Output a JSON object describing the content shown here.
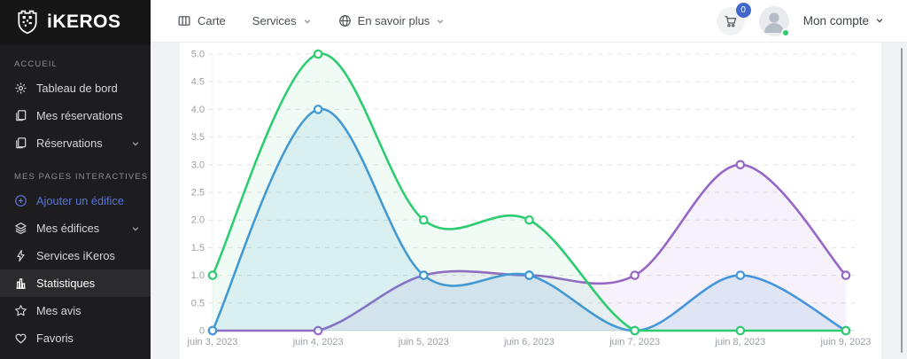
{
  "brand": {
    "name": "iKEROS",
    "logo_icon": "qr-shield"
  },
  "navbar": {
    "items": [
      {
        "label": "Carte",
        "icon": "map",
        "chevron": false
      },
      {
        "label": "Services",
        "icon": null,
        "chevron": true
      },
      {
        "label": "En savoir plus",
        "icon": "globe",
        "chevron": true
      }
    ],
    "cart": {
      "icon": "cart",
      "badge": "0"
    },
    "account": {
      "label": "Mon compte",
      "icon": "user-avatar",
      "status": "online"
    }
  },
  "sidebar": {
    "sections": [
      {
        "label": "ACCUEIL",
        "items": [
          {
            "label": "Tableau de bord",
            "icon": "gear"
          },
          {
            "label": "Mes réservations",
            "icon": "document"
          },
          {
            "label": "Réservations",
            "icon": "document",
            "chevron": true
          }
        ]
      },
      {
        "label": "MES PAGES INTERACTIVES",
        "items": [
          {
            "label": "Ajouter un édifice",
            "icon": "plus-circle",
            "accent": true
          },
          {
            "label": "Mes édifices",
            "icon": "layers",
            "chevron": true
          },
          {
            "label": "Services iKeros",
            "icon": "bolt"
          },
          {
            "label": "Statistiques",
            "icon": "bar-chart",
            "active": true
          },
          {
            "label": "Mes avis",
            "icon": "star"
          },
          {
            "label": "Favoris",
            "icon": "heart"
          }
        ]
      }
    ]
  },
  "chart_data": {
    "type": "area",
    "x_labels": [
      "juin 3, 2023",
      "juin 4, 2023",
      "juin 5, 2023",
      "juin 6, 2023",
      "juin 7, 2023",
      "juin 8, 2023",
      "juin 9, 2023"
    ],
    "series": [
      {
        "name": "purple",
        "color": "#9667c6",
        "fill_opacity": 0.09,
        "values": [
          0,
          0,
          1,
          1,
          1,
          3,
          1
        ]
      },
      {
        "name": "blue",
        "color": "#4596db",
        "fill_opacity": 0.12,
        "values": [
          0,
          4,
          1,
          1,
          0,
          1,
          0
        ]
      },
      {
        "name": "green",
        "color": "#2ecc71",
        "fill_opacity": 0.08,
        "values": [
          1,
          5,
          2,
          2,
          0,
          0,
          0
        ]
      }
    ],
    "ylim": [
      0,
      5
    ],
    "ytick_step": 0.5,
    "grid": "horizontal-dashed",
    "legend": "none",
    "smooth": true,
    "title": ""
  },
  "colors": {
    "sidebar_bg": "#1d1d1f",
    "sidebar_active_bg": "#2b2b2d",
    "accent_blue": "#5b74d4",
    "badge_blue": "#4169c9",
    "online_green": "#2ecc71",
    "axis_text": "#9aa0a6",
    "gridline": "#e3e3e3"
  }
}
